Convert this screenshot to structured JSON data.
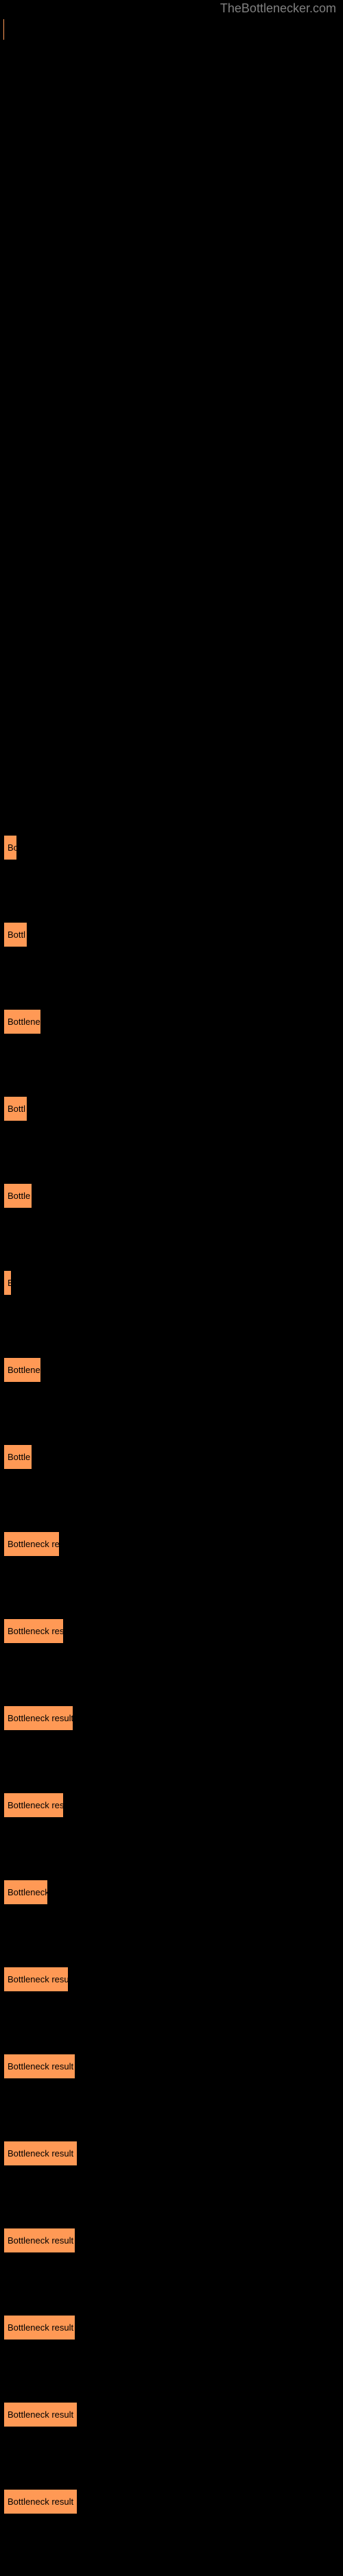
{
  "header": {
    "title": "TheBottlenecker.com"
  },
  "results": [
    {
      "label": "Bo",
      "width": 20
    },
    {
      "label": "Bottl",
      "width": 35
    },
    {
      "label": "Bottlene",
      "width": 55
    },
    {
      "label": "Bottl",
      "width": 35
    },
    {
      "label": "Bottle",
      "width": 42
    },
    {
      "label": "B",
      "width": 12
    },
    {
      "label": "Bottlene",
      "width": 55
    },
    {
      "label": "Bottle",
      "width": 42
    },
    {
      "label": "Bottleneck re",
      "width": 82
    },
    {
      "label": "Bottleneck res",
      "width": 88
    },
    {
      "label": "Bottleneck result",
      "width": 102
    },
    {
      "label": "Bottleneck res",
      "width": 88
    },
    {
      "label": "Bottleneck",
      "width": 65
    },
    {
      "label": "Bottleneck resu",
      "width": 95
    },
    {
      "label": "Bottleneck result",
      "width": 105
    },
    {
      "label": "Bottleneck result",
      "width": 108
    },
    {
      "label": "Bottleneck result",
      "width": 105
    },
    {
      "label": "Bottleneck result",
      "width": 105
    },
    {
      "label": "Bottleneck result",
      "width": 108
    },
    {
      "label": "Bottleneck result",
      "width": 108
    }
  ]
}
